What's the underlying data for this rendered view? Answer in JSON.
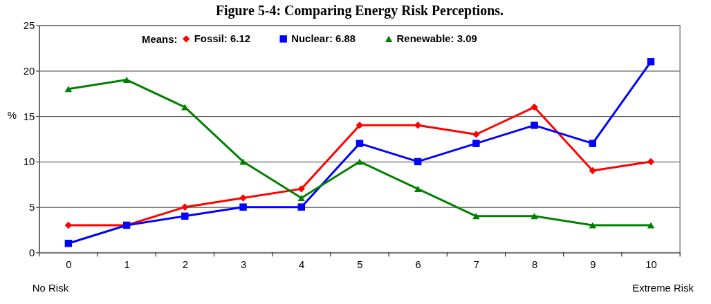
{
  "chart_data": {
    "type": "line",
    "title": "Figure 5-4: Comparing Energy Risk Perceptions.",
    "ylabel": "%",
    "legend_title": "Means:",
    "categories": [
      "0",
      "1",
      "2",
      "3",
      "4",
      "5",
      "6",
      "7",
      "8",
      "9",
      "10"
    ],
    "series": [
      {
        "name": "Fossil: 6.12",
        "color": "#ff0000",
        "marker": "diamond",
        "values": [
          3,
          3,
          5,
          6,
          7,
          14,
          14,
          13,
          16,
          9,
          10
        ]
      },
      {
        "name": "Nuclear: 6.88",
        "color": "#0000ff",
        "marker": "square",
        "values": [
          1,
          3,
          4,
          5,
          5,
          12,
          10,
          12,
          14,
          12,
          21
        ]
      },
      {
        "name": "Renewable: 3.09",
        "color": "#008000",
        "marker": "triangle",
        "values": [
          18,
          19,
          16,
          10,
          6,
          10,
          7,
          4,
          4,
          3,
          3
        ]
      }
    ],
    "ylim": [
      0,
      25
    ],
    "yticks": [
      0,
      5,
      10,
      15,
      20,
      25
    ],
    "grid": "y",
    "legend": "top",
    "line_style": "solid",
    "annotations": [
      "No Risk",
      "Extreme Risk"
    ]
  }
}
